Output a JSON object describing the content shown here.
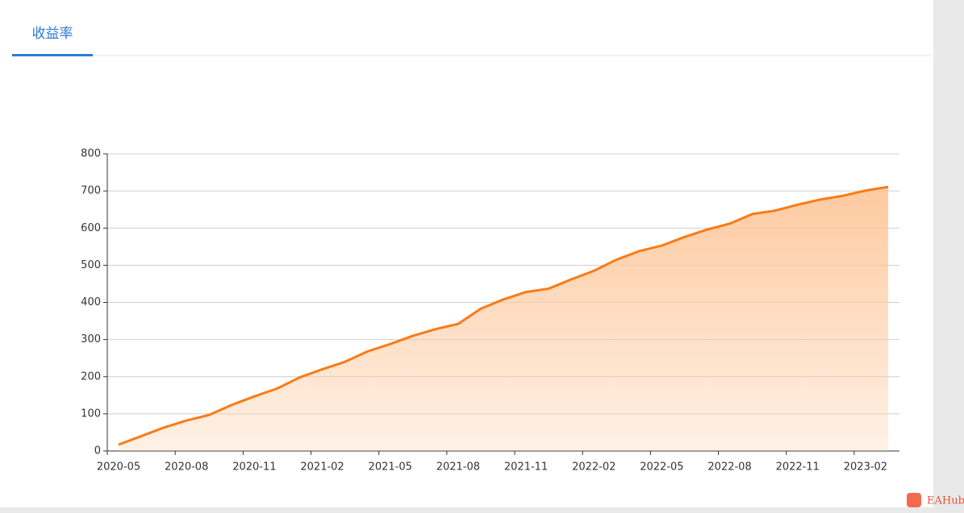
{
  "chart_data": {
    "type": "line",
    "title": "收益率",
    "area": true,
    "color": "#f97b16",
    "grid": true,
    "categories": [
      "2020-05",
      null,
      null,
      "2020-08",
      null,
      null,
      "2020-11",
      null,
      null,
      "2021-02",
      null,
      null,
      "2021-05",
      null,
      null,
      "2021-08",
      null,
      null,
      "2021-11",
      null,
      null,
      "2022-02",
      null,
      null,
      "2022-05",
      null,
      null,
      "2022-08",
      null,
      null,
      "2022-11",
      null,
      null,
      "2023-02",
      null
    ],
    "values": [
      17,
      40,
      63,
      82,
      97,
      124,
      147,
      168,
      198,
      220,
      240,
      268,
      288,
      310,
      328,
      342,
      383,
      408,
      428,
      437,
      462,
      485,
      515,
      538,
      553,
      576,
      596,
      612,
      638,
      647,
      663,
      677,
      687,
      701,
      711
    ],
    "ylim": [
      0,
      800
    ],
    "yticks": [
      0,
      100,
      200,
      300,
      400,
      500,
      600,
      700,
      800
    ]
  },
  "watermark": "EAHub"
}
